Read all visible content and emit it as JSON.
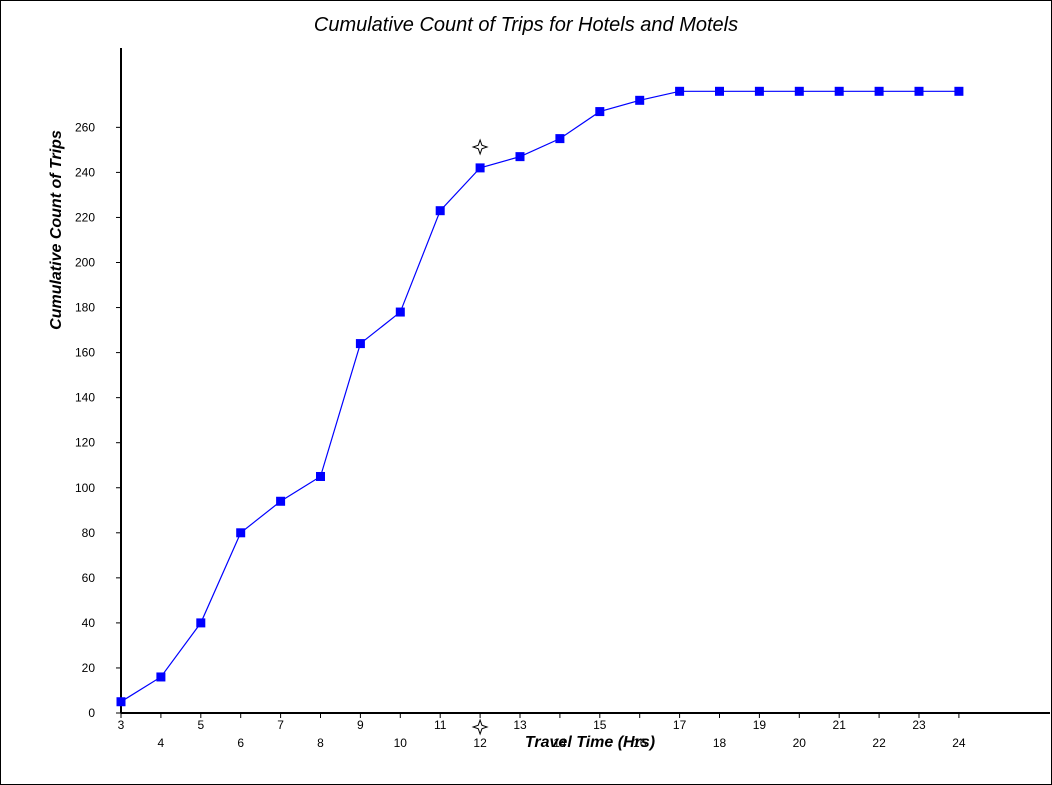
{
  "chart_data": {
    "type": "line",
    "title": "Cumulative Count of Trips for Hotels and Motels",
    "xlabel": "Travel Time (Hrs)",
    "ylabel": "Cumulative Count of Trips",
    "x": [
      3,
      4,
      5,
      6,
      7,
      8,
      9,
      10,
      11,
      12,
      13,
      14,
      15,
      16,
      17,
      18,
      19,
      20,
      21,
      22,
      23,
      24
    ],
    "x_tick_labels": [
      "3",
      "4",
      "5",
      "6",
      "7",
      "8",
      "9",
      "10",
      "11",
      "12",
      "13",
      "14",
      "15",
      "16",
      "17",
      "18",
      "19",
      "20",
      "21",
      "22",
      "23",
      "24"
    ],
    "series": [
      {
        "values": [
          5,
          16,
          40,
          80,
          94,
          105,
          164,
          178,
          223,
          242,
          247,
          255,
          267,
          272,
          276,
          276,
          276,
          276,
          276,
          276,
          276,
          276
        ]
      }
    ],
    "y_ticks": [
      0,
      20,
      40,
      60,
      80,
      100,
      120,
      140,
      160,
      180,
      200,
      220,
      240,
      260
    ],
    "ylim": [
      0,
      290
    ],
    "xlim": [
      3,
      24
    ],
    "grid": false,
    "legend": "none",
    "marker": "square",
    "line_color": "#0000ff",
    "marker_color": "#0000ff",
    "cursor_marker_x": 12,
    "cursor_marker_color": "#000000"
  }
}
